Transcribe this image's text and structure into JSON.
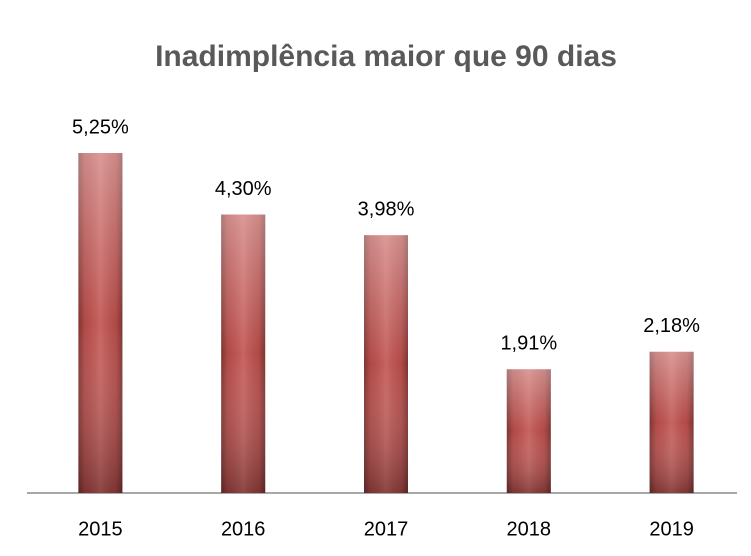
{
  "chart_data": {
    "type": "bar",
    "title": "Inadimplência maior que 90 dias",
    "categories": [
      "2015",
      "2016",
      "2017",
      "2018",
      "2019"
    ],
    "values": [
      5.25,
      4.3,
      3.98,
      1.91,
      2.18
    ],
    "value_labels": [
      "5,25%",
      "4,30%",
      "3,98%",
      "1,91%",
      "2,18%"
    ],
    "color": "#c0504d"
  }
}
